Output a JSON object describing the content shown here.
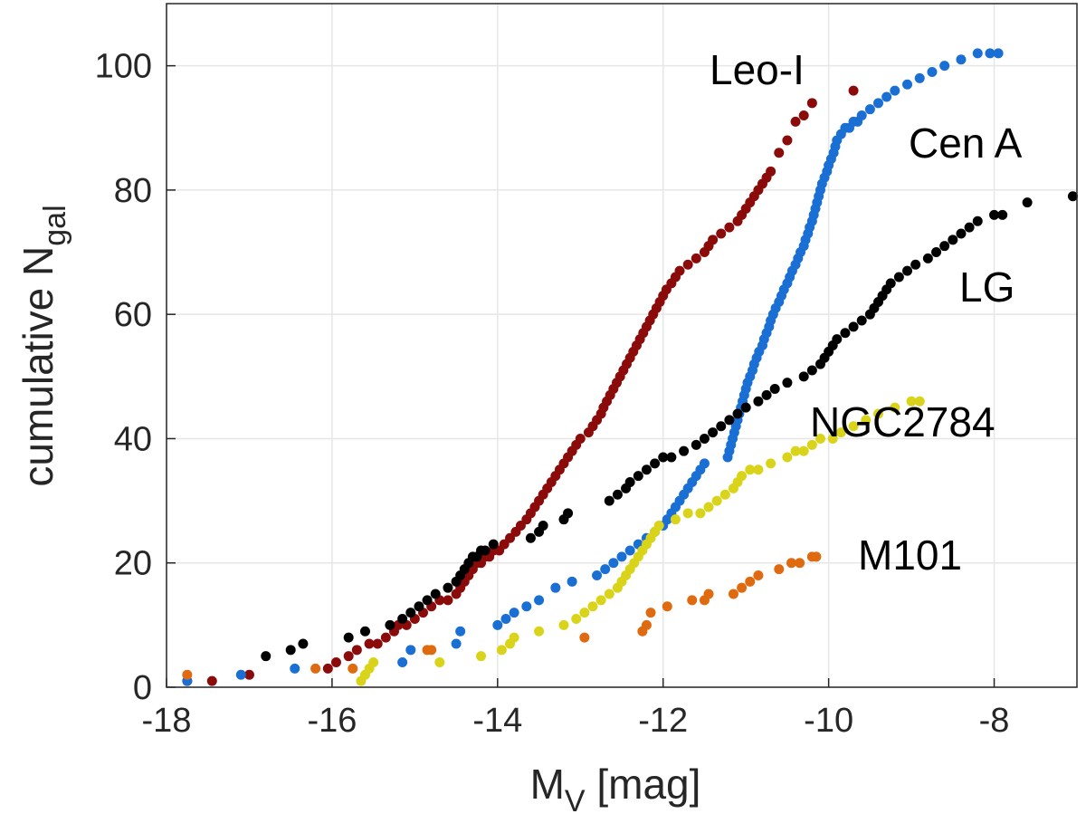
{
  "chart_data": {
    "type": "scatter",
    "xlabel": "M",
    "xlabel_sub": "V",
    "xlabel_unit": "[mag]",
    "ylabel": "cumulative N",
    "ylabel_sub": "gal",
    "xlim": [
      -18,
      -7
    ],
    "ylim": [
      0,
      110
    ],
    "xticks": [
      -18,
      -16,
      -14,
      -12,
      -10,
      -8
    ],
    "yticks": [
      0,
      20,
      40,
      60,
      80,
      100
    ],
    "grid": true,
    "series": [
      {
        "name": "Leo-I",
        "color": "#8b0a0a",
        "x": [
          -17.75,
          -17.45,
          -17.0,
          -16.05,
          -15.95,
          -15.8,
          -15.7,
          -15.55,
          -15.45,
          -15.35,
          -15.25,
          -15.2,
          -15.1,
          -15.0,
          -14.9,
          -14.8,
          -14.7,
          -14.6,
          -14.5,
          -14.45,
          -14.4,
          -14.35,
          -14.3,
          -14.25,
          -14.2,
          -14.15,
          -14.1,
          -14.05,
          -13.98,
          -13.92,
          -13.85,
          -13.78,
          -13.72,
          -13.65,
          -13.6,
          -13.55,
          -13.5,
          -13.45,
          -13.4,
          -13.35,
          -13.3,
          -13.25,
          -13.2,
          -13.15,
          -13.1,
          -13.05,
          -13.0,
          -12.9,
          -12.85,
          -12.8,
          -12.75,
          -12.72,
          -12.68,
          -12.64,
          -12.6,
          -12.56,
          -12.52,
          -12.48,
          -12.44,
          -12.4,
          -12.36,
          -12.32,
          -12.28,
          -12.24,
          -12.2,
          -12.16,
          -12.12,
          -12.08,
          -12.04,
          -12.0,
          -11.96,
          -11.9,
          -11.85,
          -11.8,
          -11.7,
          -11.6,
          -11.5,
          -11.45,
          -11.4,
          -11.3,
          -11.2,
          -11.1,
          -11.05,
          -11.0,
          -10.95,
          -10.9,
          -10.85,
          -10.8,
          -10.75,
          -10.7,
          -10.6,
          -10.5,
          -10.4,
          -10.3,
          -10.2,
          -9.7
        ],
        "y": [
          1,
          1,
          2,
          3,
          4,
          5,
          6,
          7,
          7,
          8,
          9,
          10,
          10,
          11,
          12,
          13,
          14,
          14,
          15,
          16,
          17,
          18,
          19,
          20,
          20,
          21,
          21,
          22,
          22,
          23,
          24,
          25,
          26,
          27,
          28,
          29,
          30,
          31,
          32,
          33,
          34,
          35,
          36,
          37,
          38,
          39,
          40,
          41,
          42,
          43,
          44,
          45,
          46,
          47,
          48,
          49,
          50,
          51,
          52,
          53,
          54,
          55,
          56,
          57,
          58,
          59,
          60,
          61,
          62,
          63,
          64,
          65,
          66,
          67,
          68,
          69,
          70,
          71,
          72,
          73,
          74,
          75,
          76,
          77,
          78,
          79,
          80,
          81,
          82,
          83,
          86,
          88,
          91,
          92,
          94,
          96
        ]
      },
      {
        "name": "Cen A",
        "color": "#1a6fd4",
        "x": [
          -17.75,
          -17.1,
          -16.45,
          -15.15,
          -15.05,
          -14.5,
          -14.45,
          -14.0,
          -13.9,
          -13.8,
          -13.65,
          -13.5,
          -13.3,
          -13.1,
          -12.8,
          -12.7,
          -12.6,
          -12.5,
          -12.4,
          -12.3,
          -12.2,
          -12.1,
          -12.0,
          -11.95,
          -11.9,
          -11.85,
          -11.8,
          -11.75,
          -11.7,
          -11.65,
          -11.6,
          -11.55,
          -11.5,
          -11.22,
          -11.2,
          -11.18,
          -11.16,
          -11.14,
          -11.12,
          -11.1,
          -11.08,
          -11.06,
          -11.04,
          -11.02,
          -11.0,
          -10.98,
          -10.95,
          -10.92,
          -10.9,
          -10.87,
          -10.84,
          -10.8,
          -10.78,
          -10.75,
          -10.72,
          -10.7,
          -10.67,
          -10.64,
          -10.6,
          -10.57,
          -10.54,
          -10.5,
          -10.47,
          -10.44,
          -10.4,
          -10.37,
          -10.34,
          -10.3,
          -10.28,
          -10.25,
          -10.23,
          -10.2,
          -10.18,
          -10.16,
          -10.14,
          -10.12,
          -10.1,
          -10.08,
          -10.05,
          -10.02,
          -10.0,
          -9.97,
          -9.94,
          -9.92,
          -9.9,
          -9.85,
          -9.8,
          -9.75,
          -9.7,
          -9.65,
          -9.6,
          -9.5,
          -9.4,
          -9.3,
          -9.2,
          -9.05,
          -8.9,
          -8.75,
          -8.6,
          -8.4,
          -8.2,
          -8.05,
          -7.95
        ],
        "y": [
          1,
          2,
          3,
          4,
          6,
          7,
          9,
          10,
          11,
          12,
          13,
          14,
          16,
          17,
          18,
          19,
          20,
          21,
          22,
          23,
          24,
          25,
          26,
          27,
          28,
          29,
          30,
          31,
          32,
          33,
          34,
          35,
          36,
          37,
          38,
          39,
          40,
          41,
          42,
          43,
          44,
          45,
          46,
          47,
          48,
          49,
          50,
          51,
          52,
          53,
          54,
          55,
          56,
          57,
          58,
          59,
          60,
          61,
          62,
          63,
          64,
          65,
          66,
          67,
          68,
          69,
          70,
          71,
          72,
          73,
          74,
          75,
          76,
          77,
          78,
          79,
          80,
          81,
          82,
          83,
          84,
          85,
          86,
          87,
          88,
          89,
          90,
          90,
          91,
          91,
          92,
          93,
          94,
          95,
          96,
          97,
          98,
          99,
          100,
          101,
          102,
          102,
          102
        ]
      },
      {
        "name": "LG",
        "color": "#000000",
        "x": [
          -16.8,
          -16.5,
          -16.35,
          -15.8,
          -15.6,
          -15.3,
          -15.15,
          -15.05,
          -14.95,
          -14.85,
          -14.75,
          -14.6,
          -14.5,
          -14.45,
          -14.4,
          -14.35,
          -14.3,
          -14.25,
          -14.2,
          -14.15,
          -14.05,
          -13.6,
          -13.5,
          -13.45,
          -13.2,
          -13.15,
          -12.65,
          -12.55,
          -12.45,
          -12.4,
          -12.3,
          -12.2,
          -12.1,
          -12.0,
          -11.9,
          -11.75,
          -11.6,
          -11.5,
          -11.4,
          -11.3,
          -11.2,
          -11.1,
          -11.0,
          -10.85,
          -10.75,
          -10.65,
          -10.5,
          -10.3,
          -10.2,
          -10.1,
          -10.05,
          -10.0,
          -9.95,
          -9.9,
          -9.8,
          -9.7,
          -9.6,
          -9.5,
          -9.45,
          -9.4,
          -9.35,
          -9.3,
          -9.25,
          -9.15,
          -9.05,
          -8.95,
          -8.8,
          -8.7,
          -8.6,
          -8.5,
          -8.4,
          -8.3,
          -8.2,
          -8.0,
          -7.9,
          -7.6,
          -7.05
        ],
        "y": [
          5,
          6,
          7,
          8,
          9,
          10,
          11,
          12,
          13,
          14,
          15,
          16,
          17,
          18,
          19,
          20,
          21,
          21,
          22,
          22,
          23,
          24,
          25,
          26,
          27,
          28,
          30,
          31,
          32,
          33,
          34,
          35,
          36,
          37,
          37,
          38,
          39,
          40,
          41,
          42,
          43,
          44,
          45,
          46,
          47,
          48,
          49,
          50,
          51,
          52,
          53,
          54,
          55,
          56,
          57,
          58,
          59,
          60,
          61,
          62,
          63,
          64,
          65,
          66,
          67,
          68,
          69,
          70,
          71,
          72,
          73,
          74,
          75,
          76,
          76,
          78,
          79
        ]
      },
      {
        "name": "NGC2784",
        "color": "#d9d41a",
        "x": [
          -15.65,
          -15.6,
          -15.55,
          -15.5,
          -14.7,
          -14.2,
          -13.95,
          -13.85,
          -13.8,
          -13.5,
          -13.2,
          -13.05,
          -12.95,
          -12.85,
          -12.75,
          -12.65,
          -12.55,
          -12.5,
          -12.45,
          -12.4,
          -12.35,
          -12.3,
          -12.25,
          -12.2,
          -12.15,
          -12.1,
          -12.05,
          -11.85,
          -11.7,
          -11.55,
          -11.45,
          -11.35,
          -11.25,
          -11.15,
          -11.1,
          -11.05,
          -10.95,
          -10.85,
          -10.7,
          -10.5,
          -10.4,
          -10.3,
          -10.2,
          -10.1,
          -9.95,
          -9.85,
          -9.7,
          -9.55,
          -9.4,
          -9.2,
          -9.0,
          -8.9
        ],
        "y": [
          1,
          2,
          3,
          4,
          4,
          5,
          6,
          7,
          8,
          9,
          10,
          11,
          12,
          13,
          14,
          15,
          16,
          17,
          18,
          19,
          20,
          21,
          22,
          23,
          24,
          25,
          26,
          27,
          28,
          28,
          29,
          30,
          31,
          32,
          33,
          34,
          35,
          35,
          36,
          37,
          38,
          38,
          39,
          40,
          40,
          41,
          42,
          43,
          44,
          45,
          46,
          46
        ]
      },
      {
        "name": "M101",
        "color": "#e06a10",
        "x": [
          -17.75,
          -16.2,
          -15.75,
          -14.85,
          -14.8,
          -12.95,
          -12.25,
          -12.2,
          -12.15,
          -11.95,
          -11.65,
          -11.5,
          -11.45,
          -11.15,
          -11.05,
          -10.95,
          -10.85,
          -10.6,
          -10.45,
          -10.35,
          -10.2,
          -10.15
        ],
        "y": [
          2,
          3,
          3,
          6,
          6,
          8,
          9,
          10,
          12,
          13,
          14,
          14,
          15,
          15,
          16,
          17,
          18,
          19,
          20,
          20,
          21,
          21
        ]
      }
    ],
    "annotations": [
      {
        "text": "Leo-I",
        "series": "Leo-I"
      },
      {
        "text": "Cen A",
        "series": "Cen A"
      },
      {
        "text": "LG",
        "series": "LG"
      },
      {
        "text": "NGC2784",
        "series": "NGC2784"
      },
      {
        "text": "M101",
        "series": "M101"
      }
    ]
  }
}
